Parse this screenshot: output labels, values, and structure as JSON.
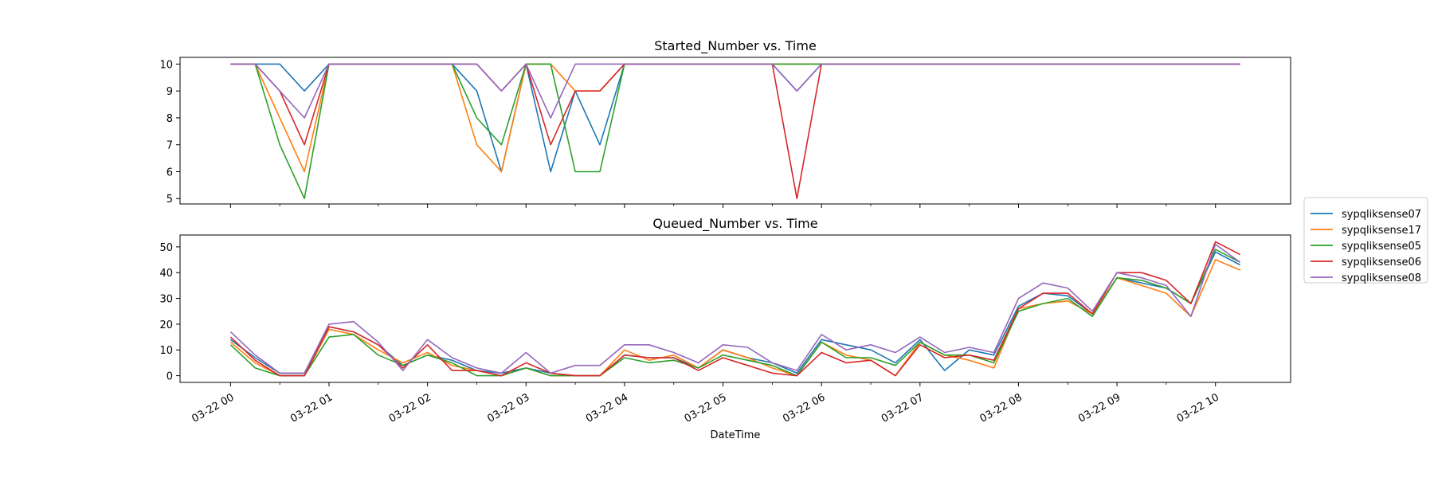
{
  "chart_data": [
    {
      "type": "line",
      "title": "Started_Number vs. Time",
      "xlabel": "",
      "ylabel": "",
      "ylim": [
        4.8,
        10.25
      ],
      "yticks": [
        5,
        6,
        7,
        8,
        9,
        10
      ],
      "x": [
        "03-22 00:00",
        "03-22 00:15",
        "03-22 00:30",
        "03-22 00:45",
        "03-22 01:00",
        "03-22 01:15",
        "03-22 01:30",
        "03-22 01:45",
        "03-22 02:00",
        "03-22 02:15",
        "03-22 02:30",
        "03-22 02:45",
        "03-22 03:00",
        "03-22 03:15",
        "03-22 03:30",
        "03-22 03:45",
        "03-22 04:00",
        "03-22 04:15",
        "03-22 04:30",
        "03-22 04:45",
        "03-22 05:00",
        "03-22 05:15",
        "03-22 05:30",
        "03-22 05:45",
        "03-22 06:00",
        "03-22 06:15",
        "03-22 06:30",
        "03-22 06:45",
        "03-22 07:00",
        "03-22 07:15",
        "03-22 07:30",
        "03-22 07:45",
        "03-22 08:00",
        "03-22 08:15",
        "03-22 08:30",
        "03-22 08:45",
        "03-22 09:00",
        "03-22 09:15",
        "03-22 09:30",
        "03-22 09:45",
        "03-22 10:00",
        "03-22 10:15"
      ],
      "series": [
        {
          "name": "sypqliksense07",
          "color": "#1f77b4",
          "values": [
            10,
            10,
            10,
            9,
            10,
            10,
            10,
            10,
            10,
            10,
            9,
            6,
            10,
            6,
            9,
            7,
            10,
            10,
            10,
            10,
            10,
            10,
            10,
            9,
            10,
            10,
            10,
            10,
            10,
            10,
            10,
            10,
            10,
            10,
            10,
            10,
            10,
            10,
            10,
            10,
            10,
            10
          ]
        },
        {
          "name": "sypqliksense17",
          "color": "#ff7f0e",
          "values": [
            10,
            10,
            8,
            6,
            10,
            10,
            10,
            10,
            10,
            10,
            7,
            6,
            10,
            10,
            9,
            9,
            10,
            10,
            10,
            10,
            10,
            10,
            10,
            10,
            10,
            10,
            10,
            10,
            10,
            10,
            10,
            10,
            10,
            10,
            10,
            10,
            10,
            10,
            10,
            10,
            10,
            10
          ]
        },
        {
          "name": "sypqliksense05",
          "color": "#2ca02c",
          "values": [
            10,
            10,
            7,
            5,
            10,
            10,
            10,
            10,
            10,
            10,
            8,
            7,
            10,
            10,
            6,
            6,
            10,
            10,
            10,
            10,
            10,
            10,
            10,
            10,
            10,
            10,
            10,
            10,
            10,
            10,
            10,
            10,
            10,
            10,
            10,
            10,
            10,
            10,
            10,
            10,
            10,
            10
          ]
        },
        {
          "name": "sypqliksense06",
          "color": "#d62728",
          "values": [
            10,
            10,
            9,
            7,
            10,
            10,
            10,
            10,
            10,
            10,
            10,
            9,
            10,
            7,
            9,
            9,
            10,
            10,
            10,
            10,
            10,
            10,
            10,
            5,
            10,
            10,
            10,
            10,
            10,
            10,
            10,
            10,
            10,
            10,
            10,
            10,
            10,
            10,
            10,
            10,
            10,
            10
          ]
        },
        {
          "name": "sypqliksense08",
          "color": "#9467bd",
          "values": [
            10,
            10,
            9,
            8,
            10,
            10,
            10,
            10,
            10,
            10,
            10,
            9,
            10,
            8,
            10,
            10,
            10,
            10,
            10,
            10,
            10,
            10,
            10,
            9,
            10,
            10,
            10,
            10,
            10,
            10,
            10,
            10,
            10,
            10,
            10,
            10,
            10,
            10,
            10,
            10,
            10,
            10
          ]
        }
      ]
    },
    {
      "type": "line",
      "title": "Queued_Number vs. Time",
      "xlabel": "DateTime",
      "ylabel": "",
      "ylim": [
        -2.6,
        54.6
      ],
      "yticks": [
        0,
        10,
        20,
        30,
        40,
        50
      ],
      "xticks": [
        "03-22 00",
        "03-22 01",
        "03-22 02",
        "03-22 03",
        "03-22 04",
        "03-22 05",
        "03-22 06",
        "03-22 07",
        "03-22 08",
        "03-22 09",
        "03-22 10"
      ],
      "x": [
        "03-22 00:00",
        "03-22 00:15",
        "03-22 00:30",
        "03-22 00:45",
        "03-22 01:00",
        "03-22 01:15",
        "03-22 01:30",
        "03-22 01:45",
        "03-22 02:00",
        "03-22 02:15",
        "03-22 02:30",
        "03-22 02:45",
        "03-22 03:00",
        "03-22 03:15",
        "03-22 03:30",
        "03-22 03:45",
        "03-22 04:00",
        "03-22 04:15",
        "03-22 04:30",
        "03-22 04:45",
        "03-22 05:00",
        "03-22 05:15",
        "03-22 05:30",
        "03-22 05:45",
        "03-22 06:00",
        "03-22 06:15",
        "03-22 06:30",
        "03-22 06:45",
        "03-22 07:00",
        "03-22 07:15",
        "03-22 07:30",
        "03-22 07:45",
        "03-22 08:00",
        "03-22 08:15",
        "03-22 08:30",
        "03-22 08:45",
        "03-22 09:00",
        "03-22 09:15",
        "03-22 09:30",
        "03-22 09:45",
        "03-22 10:00",
        "03-22 10:15"
      ],
      "series": [
        {
          "name": "sypqliksense07",
          "color": "#1f77b4",
          "values": [
            14,
            7,
            1,
            1,
            19,
            17,
            12,
            4,
            8,
            6,
            2,
            1,
            3,
            1,
            0,
            0,
            8,
            7,
            7,
            3,
            10,
            7,
            5,
            1,
            14,
            12,
            10,
            5,
            14,
            2,
            10,
            8,
            27,
            32,
            31,
            24,
            38,
            36,
            34,
            28,
            48,
            43
          ]
        },
        {
          "name": "sypqliksense17",
          "color": "#ff7f0e",
          "values": [
            13,
            5,
            0,
            0,
            18,
            16,
            10,
            5,
            9,
            4,
            2,
            0,
            3,
            0,
            0,
            0,
            10,
            6,
            8,
            3,
            10,
            7,
            3,
            0,
            13,
            8,
            6,
            0,
            13,
            8,
            6,
            3,
            26,
            28,
            29,
            24,
            38,
            35,
            32,
            23,
            45,
            41
          ]
        },
        {
          "name": "sypqliksense05",
          "color": "#2ca02c",
          "values": [
            12,
            3,
            0,
            0,
            15,
            16,
            8,
            4,
            8,
            5,
            0,
            0,
            3,
            0,
            0,
            0,
            7,
            5,
            6,
            3,
            8,
            6,
            4,
            0,
            13,
            7,
            7,
            4,
            13,
            8,
            8,
            5,
            25,
            28,
            30,
            23,
            38,
            37,
            34,
            28,
            49,
            44
          ]
        },
        {
          "name": "sypqliksense06",
          "color": "#d62728",
          "values": [
            15,
            6,
            0,
            0,
            19,
            17,
            12,
            3,
            12,
            2,
            2,
            0,
            5,
            1,
            0,
            0,
            8,
            7,
            7,
            2,
            7,
            4,
            1,
            0,
            9,
            5,
            6,
            0,
            12,
            7,
            8,
            6,
            26,
            32,
            32,
            24,
            40,
            40,
            37,
            28,
            52,
            47
          ]
        },
        {
          "name": "sypqliksense08",
          "color": "#9467bd",
          "values": [
            17,
            8,
            1,
            1,
            20,
            21,
            13,
            2,
            14,
            7,
            3,
            1,
            9,
            1,
            4,
            4,
            12,
            12,
            9,
            5,
            12,
            11,
            5,
            2,
            16,
            10,
            12,
            9,
            15,
            9,
            11,
            9,
            30,
            36,
            34,
            25,
            40,
            38,
            35,
            23,
            51,
            44
          ]
        }
      ]
    }
  ]
}
